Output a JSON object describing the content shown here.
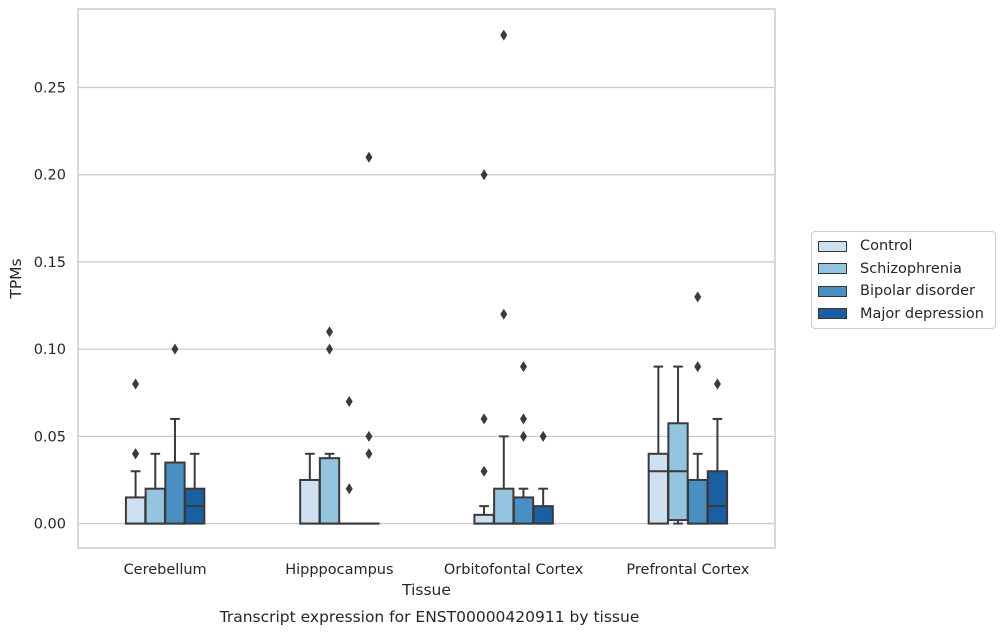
{
  "chart_data": {
    "type": "box",
    "title": "",
    "xlabel": "Tissue",
    "ylabel": "TPMs",
    "caption": "Transcript expression for ENST00000420911 by tissue",
    "ylim": [
      -0.014,
      0.295
    ],
    "yticks": [
      0.0,
      0.05,
      0.1,
      0.15,
      0.2,
      0.25
    ],
    "ytick_labels": [
      "0.00",
      "0.05",
      "0.10",
      "0.15",
      "0.20",
      "0.25"
    ],
    "grid": true,
    "legend_position": "right",
    "categories": [
      "Cerebellum",
      "Hipppocampus",
      "Orbitofontal Cortex",
      "Prefrontal Cortex"
    ],
    "series": [
      {
        "name": "Control",
        "color": "#cfe1f1",
        "boxes": [
          {
            "whislo": 0.0,
            "q1": 0.0,
            "med": 0.0,
            "q3": 0.015,
            "whishi": 0.03,
            "fliers": [
              0.04,
              0.04,
              0.08
            ]
          },
          {
            "whislo": 0.0,
            "q1": 0.0,
            "med": 0.0,
            "q3": 0.025,
            "whishi": 0.04,
            "fliers": []
          },
          {
            "whislo": 0.0,
            "q1": 0.0,
            "med": 0.0,
            "q3": 0.005,
            "whishi": 0.01,
            "fliers": [
              0.03,
              0.06,
              0.2
            ]
          },
          {
            "whislo": 0.0,
            "q1": 0.0,
            "med": 0.03,
            "q3": 0.04,
            "whishi": 0.09,
            "fliers": []
          }
        ]
      },
      {
        "name": "Schizophrenia",
        "color": "#94c4df",
        "boxes": [
          {
            "whislo": 0.0,
            "q1": 0.0,
            "med": 0.0,
            "q3": 0.02,
            "whishi": 0.04,
            "fliers": []
          },
          {
            "whislo": 0.0,
            "q1": 0.0,
            "med": 0.0,
            "q3": 0.0375,
            "whishi": 0.04,
            "fliers": [
              0.1,
              0.11
            ]
          },
          {
            "whislo": 0.0,
            "q1": 0.0,
            "med": 0.0,
            "q3": 0.02,
            "whishi": 0.05,
            "fliers": [
              0.12,
              0.28
            ]
          },
          {
            "whislo": 0.0,
            "q1": 0.002,
            "med": 0.03,
            "q3": 0.0575,
            "whishi": 0.09,
            "fliers": []
          }
        ]
      },
      {
        "name": "Bipolar disorder",
        "color": "#4a8fc4",
        "boxes": [
          {
            "whislo": 0.0,
            "q1": 0.0,
            "med": 0.0,
            "q3": 0.035,
            "whishi": 0.06,
            "fliers": [
              0.1
            ]
          },
          {
            "whislo": 0.0,
            "q1": 0.0,
            "med": 0.0,
            "q3": 0.0,
            "whishi": 0.0,
            "fliers": [
              0.02,
              0.07
            ]
          },
          {
            "whislo": 0.0,
            "q1": 0.0,
            "med": 0.0,
            "q3": 0.015,
            "whishi": 0.02,
            "fliers": [
              0.05,
              0.06,
              0.09
            ]
          },
          {
            "whislo": 0.0,
            "q1": 0.0,
            "med": 0.0,
            "q3": 0.025,
            "whishi": 0.04,
            "fliers": [
              0.09,
              0.13
            ]
          }
        ]
      },
      {
        "name": "Major depression",
        "color": "#1b5fa3",
        "boxes": [
          {
            "whislo": 0.0,
            "q1": 0.0,
            "med": 0.01,
            "q3": 0.02,
            "whishi": 0.04,
            "fliers": []
          },
          {
            "whislo": 0.0,
            "q1": 0.0,
            "med": 0.0,
            "q3": 0.0,
            "whishi": 0.0,
            "fliers": [
              0.04,
              0.05,
              0.21
            ]
          },
          {
            "whislo": 0.0,
            "q1": 0.0,
            "med": 0.0,
            "q3": 0.01,
            "whishi": 0.02,
            "fliers": [
              0.05
            ]
          },
          {
            "whislo": 0.0,
            "q1": 0.0,
            "med": 0.01,
            "q3": 0.03,
            "whishi": 0.06,
            "fliers": [
              0.08
            ]
          }
        ]
      }
    ]
  }
}
